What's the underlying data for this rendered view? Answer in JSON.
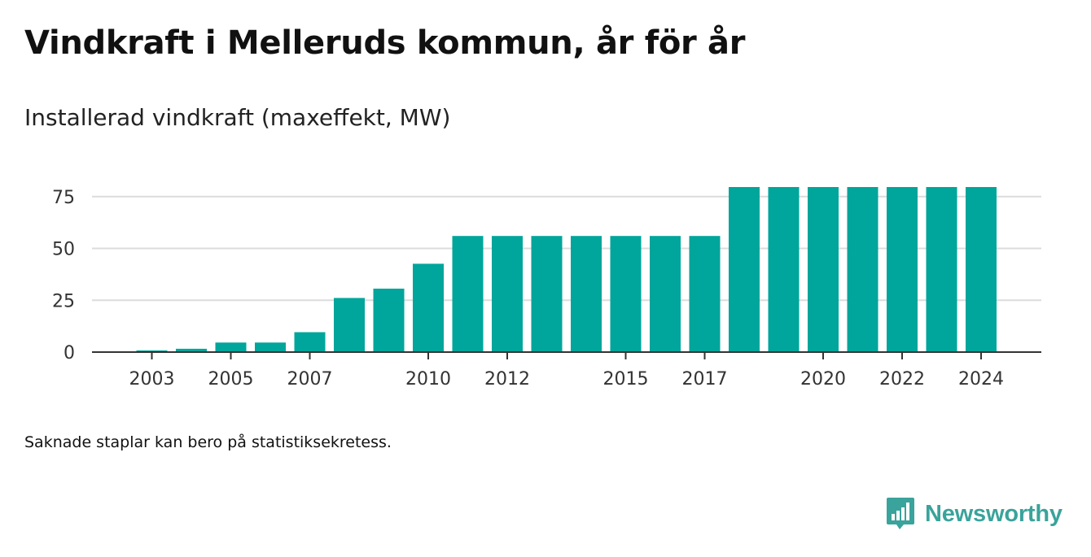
{
  "title": "Vindkraft i Melleruds kommun, år för år",
  "subtitle": "Installerad vindkraft (maxeffekt, MW)",
  "footnote": "Saknade staplar kan bero på statistiksekretess.",
  "brand": {
    "name": "Newsworthy",
    "icon": "newsworthy-logo-icon",
    "color": "#3aa39b"
  },
  "chart_data": {
    "type": "bar",
    "categories": [
      "2003",
      "2004",
      "2005",
      "2006",
      "2007",
      "2008",
      "2009",
      "2010",
      "2011",
      "2012",
      "2013",
      "2014",
      "2015",
      "2016",
      "2017",
      "2018",
      "2019",
      "2020",
      "2021",
      "2022",
      "2023",
      "2024"
    ],
    "values": [
      0.8,
      1.6,
      4.6,
      4.6,
      9.6,
      26.1,
      30.6,
      42.6,
      56,
      56,
      56,
      56,
      56,
      56,
      56,
      79.6,
      79.6,
      79.6,
      79.6,
      79.6,
      79.6,
      79.6
    ],
    "x_tick_labels": [
      "2003",
      "2005",
      "2007",
      "2010",
      "2012",
      "2015",
      "2017",
      "2020",
      "2022",
      "2024"
    ],
    "y_ticks": [
      0,
      25,
      50,
      75
    ],
    "ylim": [
      0,
      80
    ],
    "xlabel": "",
    "ylabel": "",
    "grid": true,
    "bar_color": "#00a59b"
  }
}
